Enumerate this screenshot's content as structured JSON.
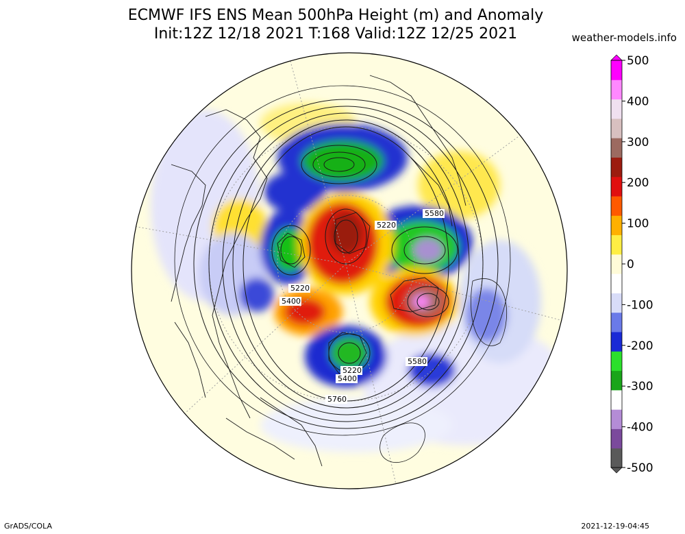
{
  "header": {
    "title_line1": "ECMWF IFS ENS Mean 500hPa Height (m) and Anomaly",
    "title_line2": "Init:12Z 12/18 2021  T:168 Valid:12Z 12/25 2021",
    "source": "weather-models.info"
  },
  "footer": {
    "software": "GrADS/COLA",
    "timestamp": "2021-12-19-04:45"
  },
  "colorbar": {
    "ticks": [
      "500",
      "400",
      "300",
      "200",
      "100",
      "0",
      "-100",
      "-200",
      "-300",
      "-400",
      "-500"
    ],
    "colors": [
      "#5a5a5a",
      "#7b4a9c",
      "#b48cd6",
      "#ffffff",
      "#1aa51a",
      "#2ce02c",
      "#1a2ad6",
      "#6a7ae8",
      "#d8dcf8",
      "#ffffff",
      "#fffbd8",
      "#ffee44",
      "#ffb000",
      "#ff5a00",
      "#e01010",
      "#9c1c10",
      "#9c6a60",
      "#d8c0c0",
      "#f0e0f0",
      "#ff88ff",
      "#ff00ff"
    ]
  },
  "map": {
    "contour_labels": [
      "5580",
      "5220",
      "5220",
      "5400",
      "5580",
      "5220",
      "5400",
      "5760"
    ],
    "projection": "north-polar-stereographic"
  }
}
